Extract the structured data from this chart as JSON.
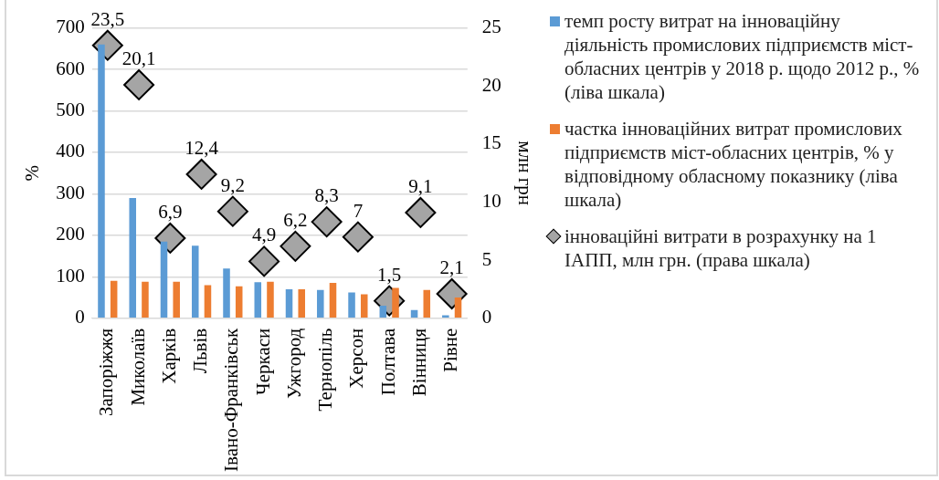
{
  "chart_data": {
    "type": "bar",
    "categories": [
      "Запоріжжя",
      "Миколаїв",
      "Харків",
      "Львів",
      "Івано-Франківськ",
      "Черкаси",
      "Ужгород",
      "Тернопіль",
      "Херсон",
      "Полтава",
      "Вінниця",
      "Рівне"
    ],
    "series": [
      {
        "name": "темп росту витрат на інноваційну діяльність промислових підприємств міст-обласних центрів у 2018 р. щодо 2012 р., % (ліва шкала)",
        "color": "#5b9bd5",
        "values": [
          660,
          290,
          185,
          175,
          120,
          87,
          70,
          68,
          62,
          30,
          20,
          7
        ]
      },
      {
        "name": "частка інноваційних витрат промислових підприємств міст-обласних центрів, % у відповідному обласному показнику (ліва шкала)",
        "color": "#ed7d31",
        "values": [
          90,
          88,
          88,
          80,
          77,
          88,
          70,
          85,
          58,
          73,
          68,
          50
        ]
      },
      {
        "name": "інноваційні витрати в розрахунку на 1 ІАПП, млн грн. (права шкала)",
        "type": "scatter",
        "axis": "y2",
        "marker": "diamond",
        "color": "#a5a5a5",
        "values": [
          23.5,
          20.1,
          6.9,
          12.4,
          9.2,
          4.9,
          6.2,
          8.3,
          7,
          1.5,
          9.1,
          2.1
        ],
        "value_labels": [
          "23,5",
          "20,1",
          "6,9",
          "12,4",
          "9,2",
          "4,9",
          "6,2",
          "8,3",
          "7",
          "1,5",
          "9,1",
          "2,1"
        ]
      }
    ],
    "ylabel": "%",
    "y2label": "млн грн",
    "ylim": [
      0,
      700
    ],
    "yticks": [
      0,
      100,
      200,
      300,
      400,
      500,
      600,
      700
    ],
    "y2lim": [
      0,
      25
    ],
    "y2ticks": [
      0,
      5,
      10,
      15,
      20,
      25
    ],
    "grid": "y",
    "legend": "right"
  }
}
